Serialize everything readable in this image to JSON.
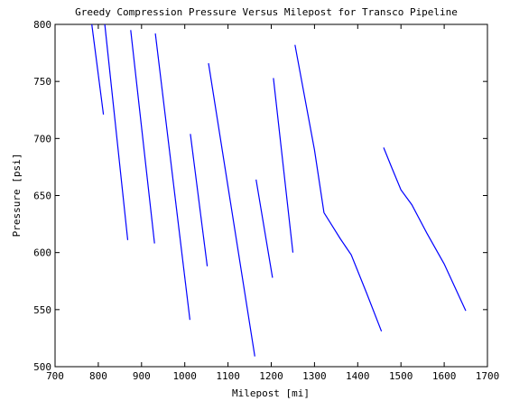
{
  "chart_data": {
    "type": "line",
    "title": "Greedy Compression Pressure Versus Milepost for Transco Pipeline",
    "xlabel": "Milepost [mi]",
    "ylabel": "Pressure [psi]",
    "xlim": [
      700,
      1700
    ],
    "ylim": [
      500,
      800
    ],
    "xticks": [
      700,
      800,
      900,
      1000,
      1100,
      1200,
      1300,
      1400,
      1500,
      1600,
      1700
    ],
    "yticks": [
      500,
      550,
      600,
      650,
      700,
      750,
      800
    ],
    "grid": false,
    "line_color": "#0000ff",
    "series": [
      {
        "x": [
          785,
          812
        ],
        "y": [
          800,
          721
        ]
      },
      {
        "x": [
          815,
          868
        ],
        "y": [
          800,
          611
        ]
      },
      {
        "x": [
          875,
          930
        ],
        "y": [
          795,
          608
        ]
      },
      {
        "x": [
          932,
          1012
        ],
        "y": [
          792,
          541
        ]
      },
      {
        "x": [
          1013,
          1052
        ],
        "y": [
          704,
          588
        ]
      },
      {
        "x": [
          1055,
          1162
        ],
        "y": [
          766,
          509
        ]
      },
      {
        "x": [
          1165,
          1203
        ],
        "y": [
          664,
          578
        ]
      },
      {
        "x": [
          1205,
          1250
        ],
        "y": [
          753,
          600
        ]
      },
      {
        "x": [
          1255,
          1300,
          1322,
          1360,
          1385,
          1420,
          1455
        ],
        "y": [
          782,
          690,
          635,
          612,
          598,
          565,
          531
        ]
      },
      {
        "x": [
          1460,
          1478,
          1500,
          1525,
          1560,
          1600,
          1650
        ],
        "y": [
          692,
          675,
          655,
          642,
          617,
          590,
          549
        ]
      }
    ]
  }
}
